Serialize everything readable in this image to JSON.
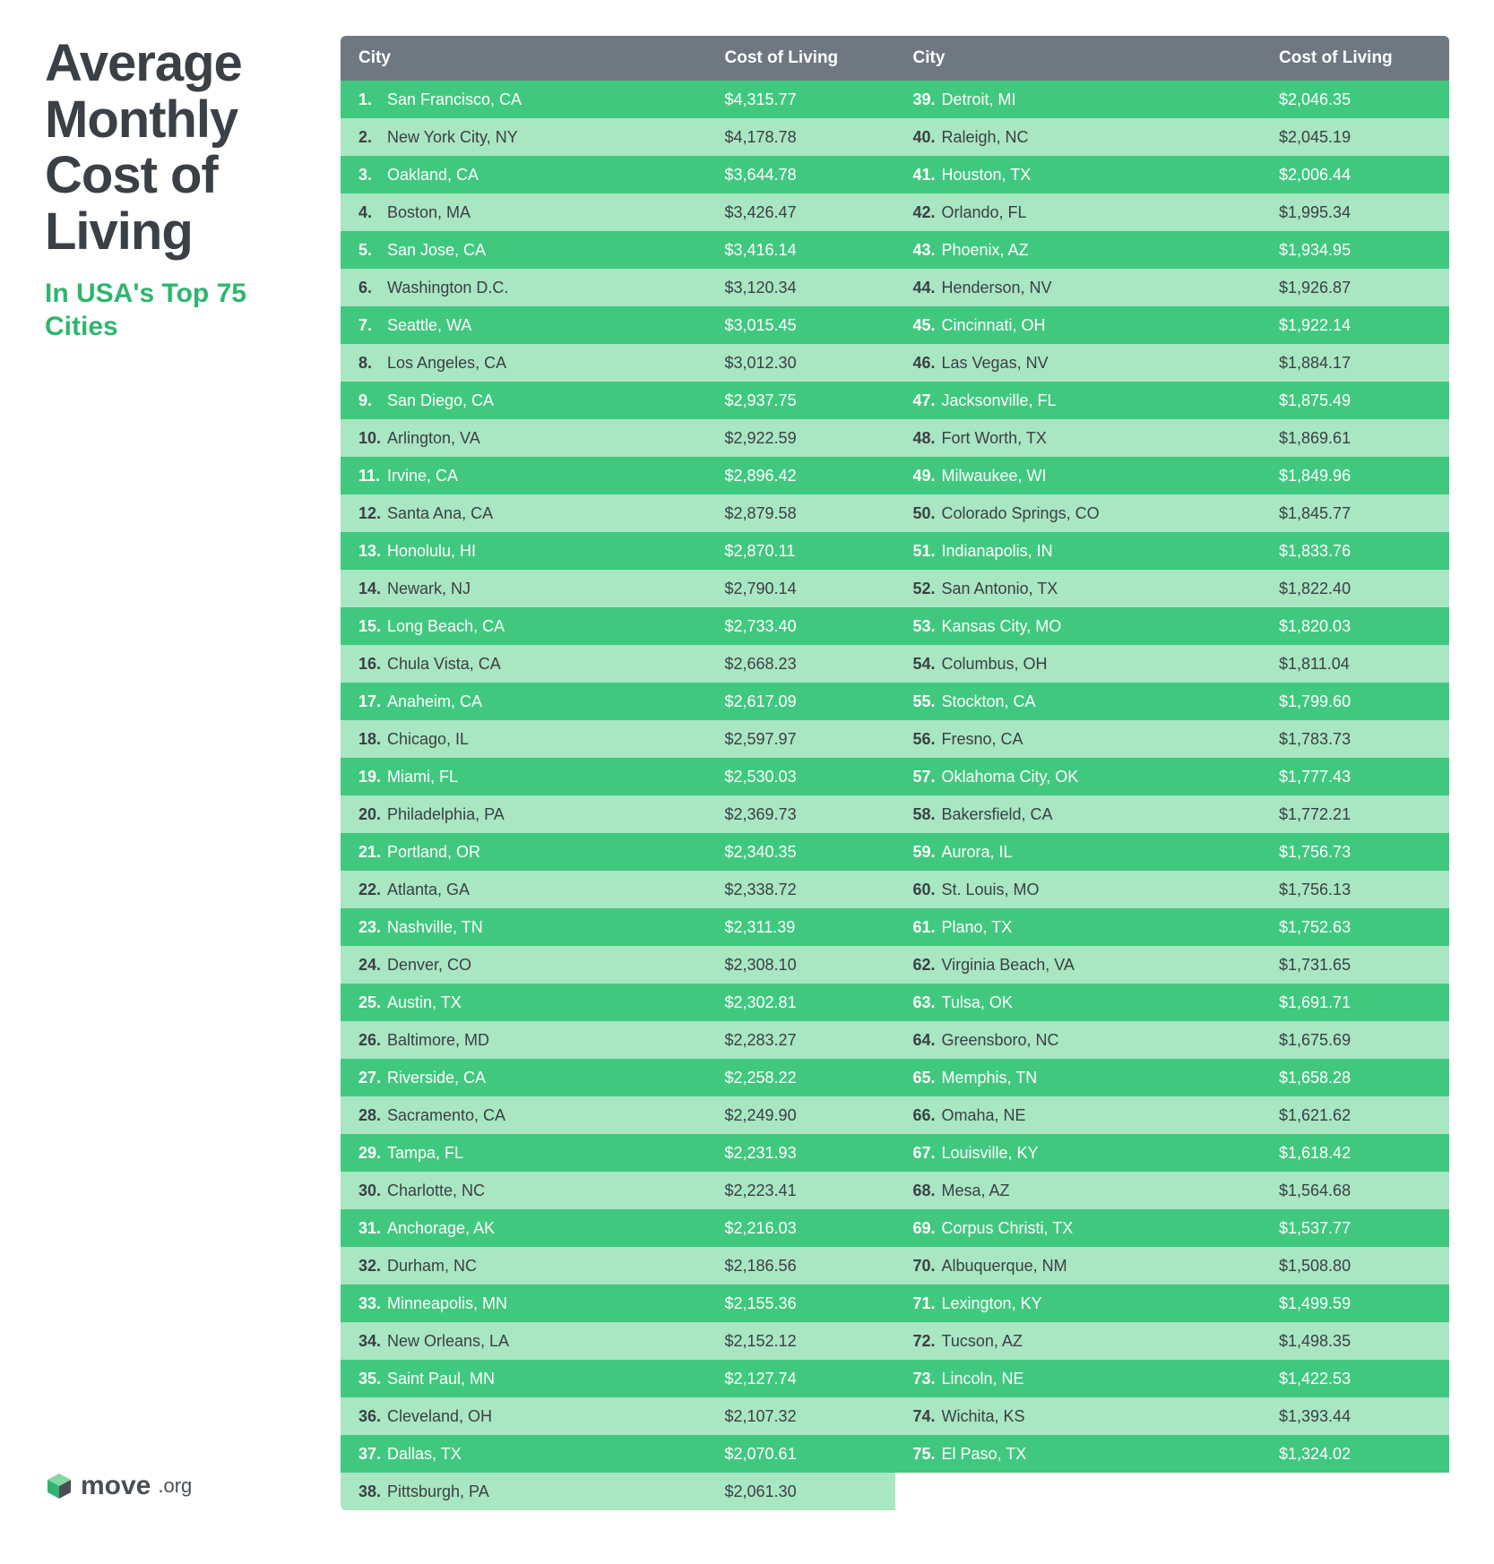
{
  "title": "Average Monthly Cost of Living",
  "subtitle": "In USA's Top 75 Cities",
  "logo": {
    "name": "move",
    "suffix": ".org"
  },
  "colors": {
    "title": "#3a4046",
    "subtitle": "#2fb56f",
    "header_bg": "#6f7880",
    "header_text": "#ffffff",
    "row_dark_bg": "#41c87f",
    "row_light_bg": "#a9e6c2",
    "row_dark_text": "#ffffff",
    "row_light_text": "#3a4046",
    "body_bg": "#ffffff"
  },
  "table": {
    "headers": {
      "city": "City",
      "cost": "Cost of Living"
    },
    "font_size_header": 19,
    "font_size_row": 18,
    "rows": [
      {
        "rank": 1,
        "city": "San Francisco, CA",
        "cost": "$4,315.77"
      },
      {
        "rank": 2,
        "city": "New York City, NY",
        "cost": "$4,178.78"
      },
      {
        "rank": 3,
        "city": "Oakland, CA",
        "cost": "$3,644.78"
      },
      {
        "rank": 4,
        "city": "Boston, MA",
        "cost": "$3,426.47"
      },
      {
        "rank": 5,
        "city": "San Jose, CA",
        "cost": "$3,416.14"
      },
      {
        "rank": 6,
        "city": "Washington D.C.",
        "cost": "$3,120.34"
      },
      {
        "rank": 7,
        "city": "Seattle, WA",
        "cost": "$3,015.45"
      },
      {
        "rank": 8,
        "city": "Los Angeles, CA",
        "cost": "$3,012.30"
      },
      {
        "rank": 9,
        "city": "San Diego, CA",
        "cost": "$2,937.75"
      },
      {
        "rank": 10,
        "city": "Arlington, VA",
        "cost": "$2,922.59"
      },
      {
        "rank": 11,
        "city": "Irvine, CA",
        "cost": "$2,896.42"
      },
      {
        "rank": 12,
        "city": "Santa Ana, CA",
        "cost": "$2,879.58"
      },
      {
        "rank": 13,
        "city": "Honolulu, HI",
        "cost": "$2,870.11"
      },
      {
        "rank": 14,
        "city": "Newark, NJ",
        "cost": "$2,790.14"
      },
      {
        "rank": 15,
        "city": "Long Beach, CA",
        "cost": "$2,733.40"
      },
      {
        "rank": 16,
        "city": "Chula Vista, CA",
        "cost": "$2,668.23"
      },
      {
        "rank": 17,
        "city": "Anaheim, CA",
        "cost": "$2,617.09"
      },
      {
        "rank": 18,
        "city": "Chicago, IL",
        "cost": "$2,597.97"
      },
      {
        "rank": 19,
        "city": "Miami, FL",
        "cost": "$2,530.03"
      },
      {
        "rank": 20,
        "city": "Philadelphia, PA",
        "cost": "$2,369.73"
      },
      {
        "rank": 21,
        "city": "Portland, OR",
        "cost": "$2,340.35"
      },
      {
        "rank": 22,
        "city": "Atlanta, GA",
        "cost": "$2,338.72"
      },
      {
        "rank": 23,
        "city": "Nashville, TN",
        "cost": "$2,311.39"
      },
      {
        "rank": 24,
        "city": "Denver, CO",
        "cost": "$2,308.10"
      },
      {
        "rank": 25,
        "city": "Austin, TX",
        "cost": "$2,302.81"
      },
      {
        "rank": 26,
        "city": "Baltimore, MD",
        "cost": "$2,283.27"
      },
      {
        "rank": 27,
        "city": "Riverside, CA",
        "cost": "$2,258.22"
      },
      {
        "rank": 28,
        "city": "Sacramento, CA",
        "cost": "$2,249.90"
      },
      {
        "rank": 29,
        "city": "Tampa, FL",
        "cost": "$2,231.93"
      },
      {
        "rank": 30,
        "city": "Charlotte, NC",
        "cost": "$2,223.41"
      },
      {
        "rank": 31,
        "city": "Anchorage, AK",
        "cost": "$2,216.03"
      },
      {
        "rank": 32,
        "city": "Durham, NC",
        "cost": "$2,186.56"
      },
      {
        "rank": 33,
        "city": "Minneapolis, MN",
        "cost": "$2,155.36"
      },
      {
        "rank": 34,
        "city": "New Orleans, LA",
        "cost": "$2,152.12"
      },
      {
        "rank": 35,
        "city": "Saint Paul, MN",
        "cost": "$2,127.74"
      },
      {
        "rank": 36,
        "city": "Cleveland, OH",
        "cost": "$2,107.32"
      },
      {
        "rank": 37,
        "city": "Dallas, TX",
        "cost": "$2,070.61"
      },
      {
        "rank": 38,
        "city": "Pittsburgh, PA",
        "cost": "$2,061.30"
      },
      {
        "rank": 39,
        "city": "Detroit, MI",
        "cost": "$2,046.35"
      },
      {
        "rank": 40,
        "city": "Raleigh, NC",
        "cost": "$2,045.19"
      },
      {
        "rank": 41,
        "city": "Houston, TX",
        "cost": "$2,006.44"
      },
      {
        "rank": 42,
        "city": "Orlando, FL",
        "cost": "$1,995.34"
      },
      {
        "rank": 43,
        "city": "Phoenix, AZ",
        "cost": "$1,934.95"
      },
      {
        "rank": 44,
        "city": "Henderson, NV",
        "cost": "$1,926.87"
      },
      {
        "rank": 45,
        "city": "Cincinnati, OH",
        "cost": "$1,922.14"
      },
      {
        "rank": 46,
        "city": "Las Vegas, NV",
        "cost": "$1,884.17"
      },
      {
        "rank": 47,
        "city": "Jacksonville, FL",
        "cost": "$1,875.49"
      },
      {
        "rank": 48,
        "city": "Fort Worth, TX",
        "cost": "$1,869.61"
      },
      {
        "rank": 49,
        "city": "Milwaukee, WI",
        "cost": "$1,849.96"
      },
      {
        "rank": 50,
        "city": "Colorado Springs, CO",
        "cost": "$1,845.77"
      },
      {
        "rank": 51,
        "city": "Indianapolis, IN",
        "cost": "$1,833.76"
      },
      {
        "rank": 52,
        "city": "San Antonio, TX",
        "cost": "$1,822.40"
      },
      {
        "rank": 53,
        "city": "Kansas City, MO",
        "cost": "$1,820.03"
      },
      {
        "rank": 54,
        "city": "Columbus, OH",
        "cost": "$1,811.04"
      },
      {
        "rank": 55,
        "city": "Stockton, CA",
        "cost": "$1,799.60"
      },
      {
        "rank": 56,
        "city": "Fresno, CA",
        "cost": "$1,783.73"
      },
      {
        "rank": 57,
        "city": "Oklahoma City, OK",
        "cost": "$1,777.43"
      },
      {
        "rank": 58,
        "city": "Bakersfield, CA",
        "cost": "$1,772.21"
      },
      {
        "rank": 59,
        "city": "Aurora, IL",
        "cost": "$1,756.73"
      },
      {
        "rank": 60,
        "city": "St. Louis, MO",
        "cost": "$1,756.13"
      },
      {
        "rank": 61,
        "city": "Plano, TX",
        "cost": "$1,752.63"
      },
      {
        "rank": 62,
        "city": "Virginia Beach, VA",
        "cost": "$1,731.65"
      },
      {
        "rank": 63,
        "city": "Tulsa, OK",
        "cost": "$1,691.71"
      },
      {
        "rank": 64,
        "city": "Greensboro, NC",
        "cost": "$1,675.69"
      },
      {
        "rank": 65,
        "city": "Memphis, TN",
        "cost": "$1,658.28"
      },
      {
        "rank": 66,
        "city": "Omaha, NE",
        "cost": "$1,621.62"
      },
      {
        "rank": 67,
        "city": "Louisville, KY",
        "cost": "$1,618.42"
      },
      {
        "rank": 68,
        "city": "Mesa, AZ",
        "cost": "$1,564.68"
      },
      {
        "rank": 69,
        "city": "Corpus Christi, TX",
        "cost": "$1,537.77"
      },
      {
        "rank": 70,
        "city": "Albuquerque, NM",
        "cost": "$1,508.80"
      },
      {
        "rank": 71,
        "city": "Lexington, KY",
        "cost": "$1,499.59"
      },
      {
        "rank": 72,
        "city": "Tucson, AZ",
        "cost": "$1,498.35"
      },
      {
        "rank": 73,
        "city": "Lincoln, NE",
        "cost": "$1,422.53"
      },
      {
        "rank": 74,
        "city": "Wichita, KS",
        "cost": "$1,393.44"
      },
      {
        "rank": 75,
        "city": "El Paso, TX",
        "cost": "$1,324.02"
      }
    ]
  }
}
